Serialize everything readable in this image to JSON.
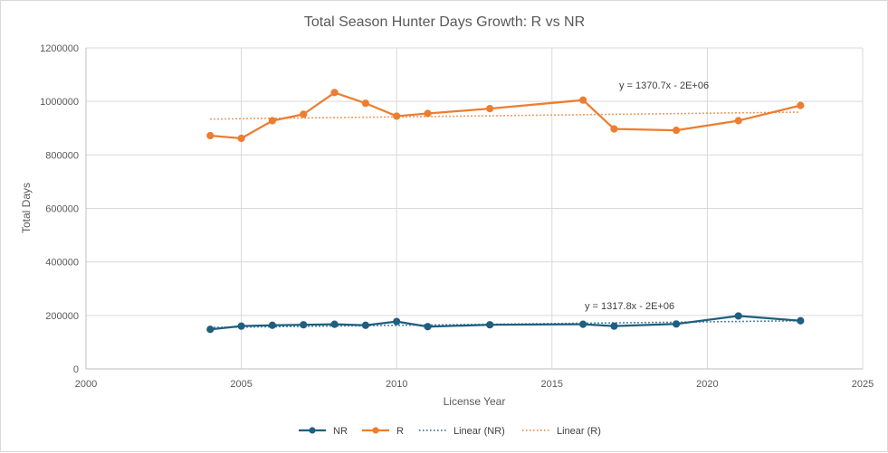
{
  "chart_data": {
    "type": "line",
    "title": "Total Season Hunter Days Growth: R vs NR",
    "xlabel": "License Year",
    "ylabel": "Total Days",
    "xlim": [
      2000,
      2025
    ],
    "ylim": [
      0,
      1200000
    ],
    "x_ticks": [
      "2000",
      "2005",
      "2010",
      "2015",
      "2020",
      "2025"
    ],
    "y_ticks": [
      "0",
      "200000",
      "400000",
      "600000",
      "800000",
      "1000000",
      "1200000"
    ],
    "grid": true,
    "legend_position": "bottom",
    "series": [
      {
        "name": "NR",
        "color": "#1f5f7f",
        "x": [
          2004,
          2005,
          2006,
          2007,
          2008,
          2009,
          2010,
          2011,
          2013,
          2016,
          2017,
          2019,
          2021,
          2023
        ],
        "y": [
          148000,
          160000,
          163000,
          165000,
          167000,
          163000,
          177000,
          158000,
          165000,
          167000,
          160000,
          168000,
          198000,
          180000
        ]
      },
      {
        "name": "R",
        "color": "#ed7d31",
        "x": [
          2004,
          2005,
          2006,
          2007,
          2008,
          2009,
          2010,
          2011,
          2013,
          2016,
          2017,
          2019,
          2021,
          2023
        ],
        "y": [
          872000,
          862000,
          928000,
          952000,
          1033000,
          993000,
          945000,
          955000,
          973000,
          1005000,
          897000,
          892000,
          928000,
          985000
        ]
      }
    ],
    "trendlines": [
      {
        "name": "Linear (NR)",
        "color": "#1f5f7f",
        "equation": "y = 1317.8x - 2E+06",
        "x": [
          2004,
          2023
        ],
        "y": [
          155000,
          180000
        ]
      },
      {
        "name": "Linear (R)",
        "color": "#ed7d31",
        "equation": "y = 1370.7x - 2E+06",
        "x": [
          2004,
          2023
        ],
        "y": [
          934000,
          960000
        ]
      }
    ]
  }
}
